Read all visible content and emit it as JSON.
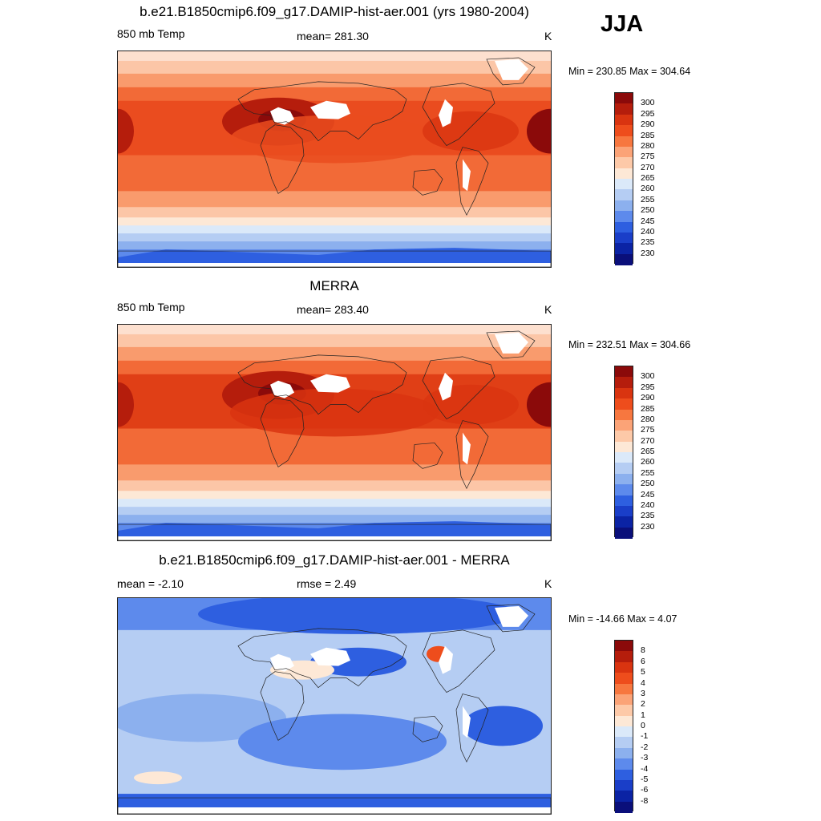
{
  "season": "JJA",
  "panels": [
    {
      "id": "model",
      "title": "b.e21.B1850cmip6.f09_g17.DAMIP-hist-aer.001 (yrs 1980-2004)",
      "left_label": "850 mb Temp",
      "center_label": "mean= 281.30",
      "units": "K",
      "minmax": "Min = 230.85 Max = 304.64",
      "colorbar_ticks": [
        "300",
        "295",
        "290",
        "285",
        "280",
        "275",
        "270",
        "265",
        "260",
        "255",
        "250",
        "245",
        "240",
        "235",
        "230"
      ],
      "colorbar_colors": [
        "#8b0a0a",
        "#b51d0c",
        "#d93410",
        "#ee4d1c",
        "#f7773f",
        "#fba377",
        "#fdc9a8",
        "#fde8d6",
        "#dbe9f9",
        "#b5cdf3",
        "#8cb0ee",
        "#5d8aec",
        "#2e5fe0",
        "#1a3ec8",
        "#0b23a4",
        "#0a0f7a"
      ],
      "field": "temperature"
    },
    {
      "id": "obs",
      "title": "MERRA",
      "left_label": "850 mb Temp",
      "center_label": "mean= 283.40",
      "units": "K",
      "minmax": "Min = 232.51 Max = 304.66",
      "colorbar_ticks": [
        "300",
        "295",
        "290",
        "285",
        "280",
        "275",
        "270",
        "265",
        "260",
        "255",
        "250",
        "245",
        "240",
        "235",
        "230"
      ],
      "colorbar_colors": [
        "#8b0a0a",
        "#b51d0c",
        "#d93410",
        "#ee4d1c",
        "#f7773f",
        "#fba377",
        "#fdc9a8",
        "#fde8d6",
        "#dbe9f9",
        "#b5cdf3",
        "#8cb0ee",
        "#5d8aec",
        "#2e5fe0",
        "#1a3ec8",
        "#0b23a4",
        "#0a0f7a"
      ],
      "field": "temperature"
    },
    {
      "id": "diff",
      "title": "b.e21.B1850cmip6.f09_g17.DAMIP-hist-aer.001 - MERRA",
      "left_label": "mean =  -2.10",
      "center_label": "rmse =   2.49",
      "units": "K",
      "minmax": "Min = -14.66 Max =   4.07",
      "colorbar_ticks": [
        "8",
        "6",
        "5",
        "4",
        "3",
        "2",
        "1",
        "0",
        "-1",
        "-2",
        "-3",
        "-4",
        "-5",
        "-6",
        "-8"
      ],
      "colorbar_colors": [
        "#8b0a0a",
        "#b51d0c",
        "#d93410",
        "#ee4d1c",
        "#f7773f",
        "#fba377",
        "#fdc9a8",
        "#fde8d6",
        "#dbe9f9",
        "#b5cdf3",
        "#8cb0ee",
        "#5d8aec",
        "#2e5fe0",
        "#1a3ec8",
        "#0b23a4",
        "#0a0f7a"
      ],
      "field": "difference"
    }
  ]
}
